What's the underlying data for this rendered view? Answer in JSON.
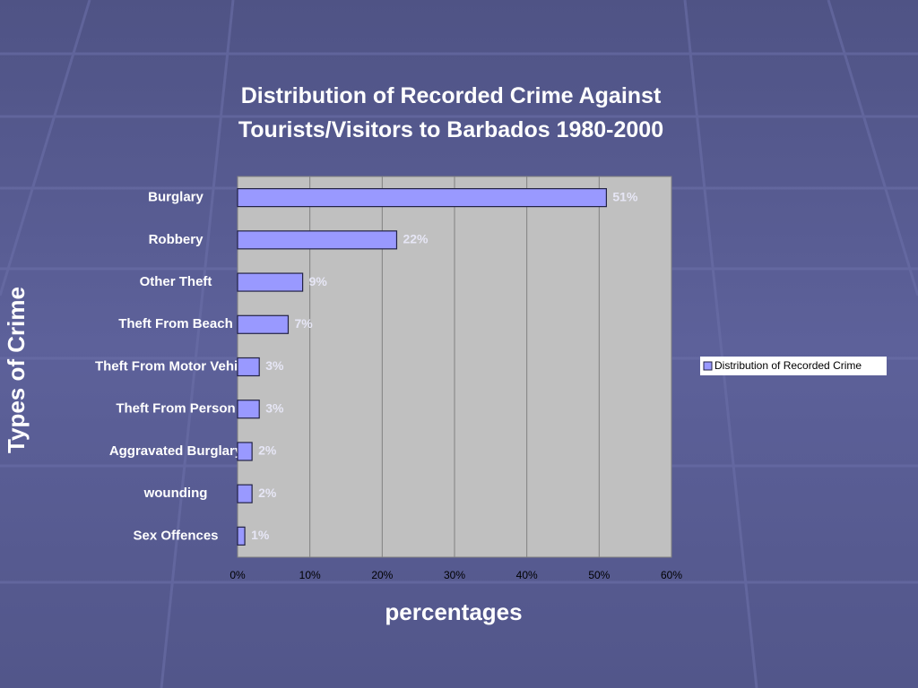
{
  "chart_data": {
    "type": "barh",
    "title": "Distribution of Recorded Crime Against Tourists/Visitors to Barbados 1980-2000",
    "x_label": "percentages",
    "y_label": "Types of Crime",
    "categories": [
      "Burglary",
      "Robbery",
      "Other Theft",
      "Theft From Beach",
      "Theft From Motor Vehicle",
      "Theft From Person",
      "Aggravated Burglary",
      "wounding",
      "Sex Offences"
    ],
    "series": [
      {
        "name": "Distribution of Recorded Crime",
        "color": "#9999ff",
        "values": [
          51,
          22,
          9,
          7,
          3,
          3,
          2,
          2,
          1
        ],
        "value_labels": [
          "51%",
          "22%",
          "9%",
          "7%",
          "3%",
          "3%",
          "2%",
          "2%",
          "1%"
        ]
      }
    ],
    "xlim": [
      0,
      60
    ],
    "xticks": [
      {
        "value": 0,
        "label": "0%"
      },
      {
        "value": 10,
        "label": "10%"
      },
      {
        "value": 20,
        "label": "20%"
      },
      {
        "value": 30,
        "label": "30%"
      },
      {
        "value": 40,
        "label": "40%"
      },
      {
        "value": 50,
        "label": "50%"
      },
      {
        "value": 60,
        "label": "60%"
      }
    ],
    "grid": true,
    "legend": "right"
  }
}
